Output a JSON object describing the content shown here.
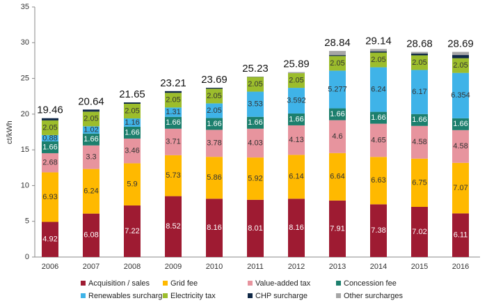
{
  "chart_data": {
    "type": "stacked_bar",
    "y_label": "ct/kWh",
    "categories": [
      "2006",
      "2007",
      "2008",
      "2009",
      "2010",
      "2011",
      "2012",
      "2013",
      "2014",
      "2015",
      "2016"
    ],
    "ylim": [
      0,
      35
    ],
    "yticks": [
      0,
      5,
      10,
      15,
      20,
      25,
      30,
      35
    ],
    "totals": [
      19.46,
      20.64,
      21.65,
      23.21,
      23.69,
      25.23,
      25.89,
      28.84,
      29.14,
      28.68,
      28.69
    ],
    "series": [
      {
        "name": "Acquisition / sales",
        "color": "#9e1b32",
        "label_color": "#ffffff",
        "data_labels": true,
        "values": [
          4.92,
          6.08,
          7.22,
          8.52,
          8.16,
          8.01,
          8.16,
          7.91,
          7.38,
          7.02,
          6.11
        ]
      },
      {
        "name": "Grid fee",
        "color": "#ffb900",
        "label_color": "#333333",
        "data_labels": true,
        "values": [
          6.93,
          6.24,
          5.9,
          5.73,
          5.86,
          5.92,
          6.14,
          6.64,
          6.63,
          6.75,
          7.07
        ]
      },
      {
        "name": "Value-added tax",
        "color": "#e7949e",
        "label_color": "#333333",
        "data_labels": true,
        "values": [
          2.68,
          3.3,
          3.46,
          3.71,
          3.78,
          4.03,
          4.13,
          4.6,
          4.65,
          4.58,
          4.58
        ]
      },
      {
        "name": "Concession fee",
        "color": "#1c7f6d",
        "label_color": "#ffffff",
        "data_labels": true,
        "values": [
          1.66,
          1.66,
          1.66,
          1.66,
          1.66,
          1.66,
          1.66,
          1.66,
          1.66,
          1.66,
          1.66
        ]
      },
      {
        "name": "Renewables surcharge",
        "color": "#3fb3e8",
        "label_color": "#333333",
        "data_labels": true,
        "values": [
          0.88,
          1.02,
          1.16,
          1.31,
          2.05,
          3.53,
          3.592,
          5.277,
          6.24,
          6.17,
          6.354
        ]
      },
      {
        "name": "Electricity tax",
        "color": "#9cbd2c",
        "label_color": "#333333",
        "data_labels": true,
        "values": [
          2.05,
          2.05,
          2.05,
          2.05,
          2.05,
          2.05,
          2.05,
          2.05,
          2.05,
          2.05,
          2.05
        ]
      },
      {
        "name": "CHP surcharge",
        "color": "#0f2846",
        "label_color": "#ffffff",
        "data_labels": false,
        "values": [
          0.31,
          0.29,
          0.19,
          0.24,
          0.13,
          0.03,
          0.002,
          0.126,
          0.178,
          0.254,
          0.445
        ]
      },
      {
        "name": "Other surcharges",
        "color": "#a6a6a6",
        "label_color": "#333333",
        "data_labels": false,
        "values": [
          0,
          0,
          0,
          0,
          0,
          0,
          0.151,
          0.579,
          0.326,
          0.227,
          0.44
        ]
      }
    ]
  }
}
